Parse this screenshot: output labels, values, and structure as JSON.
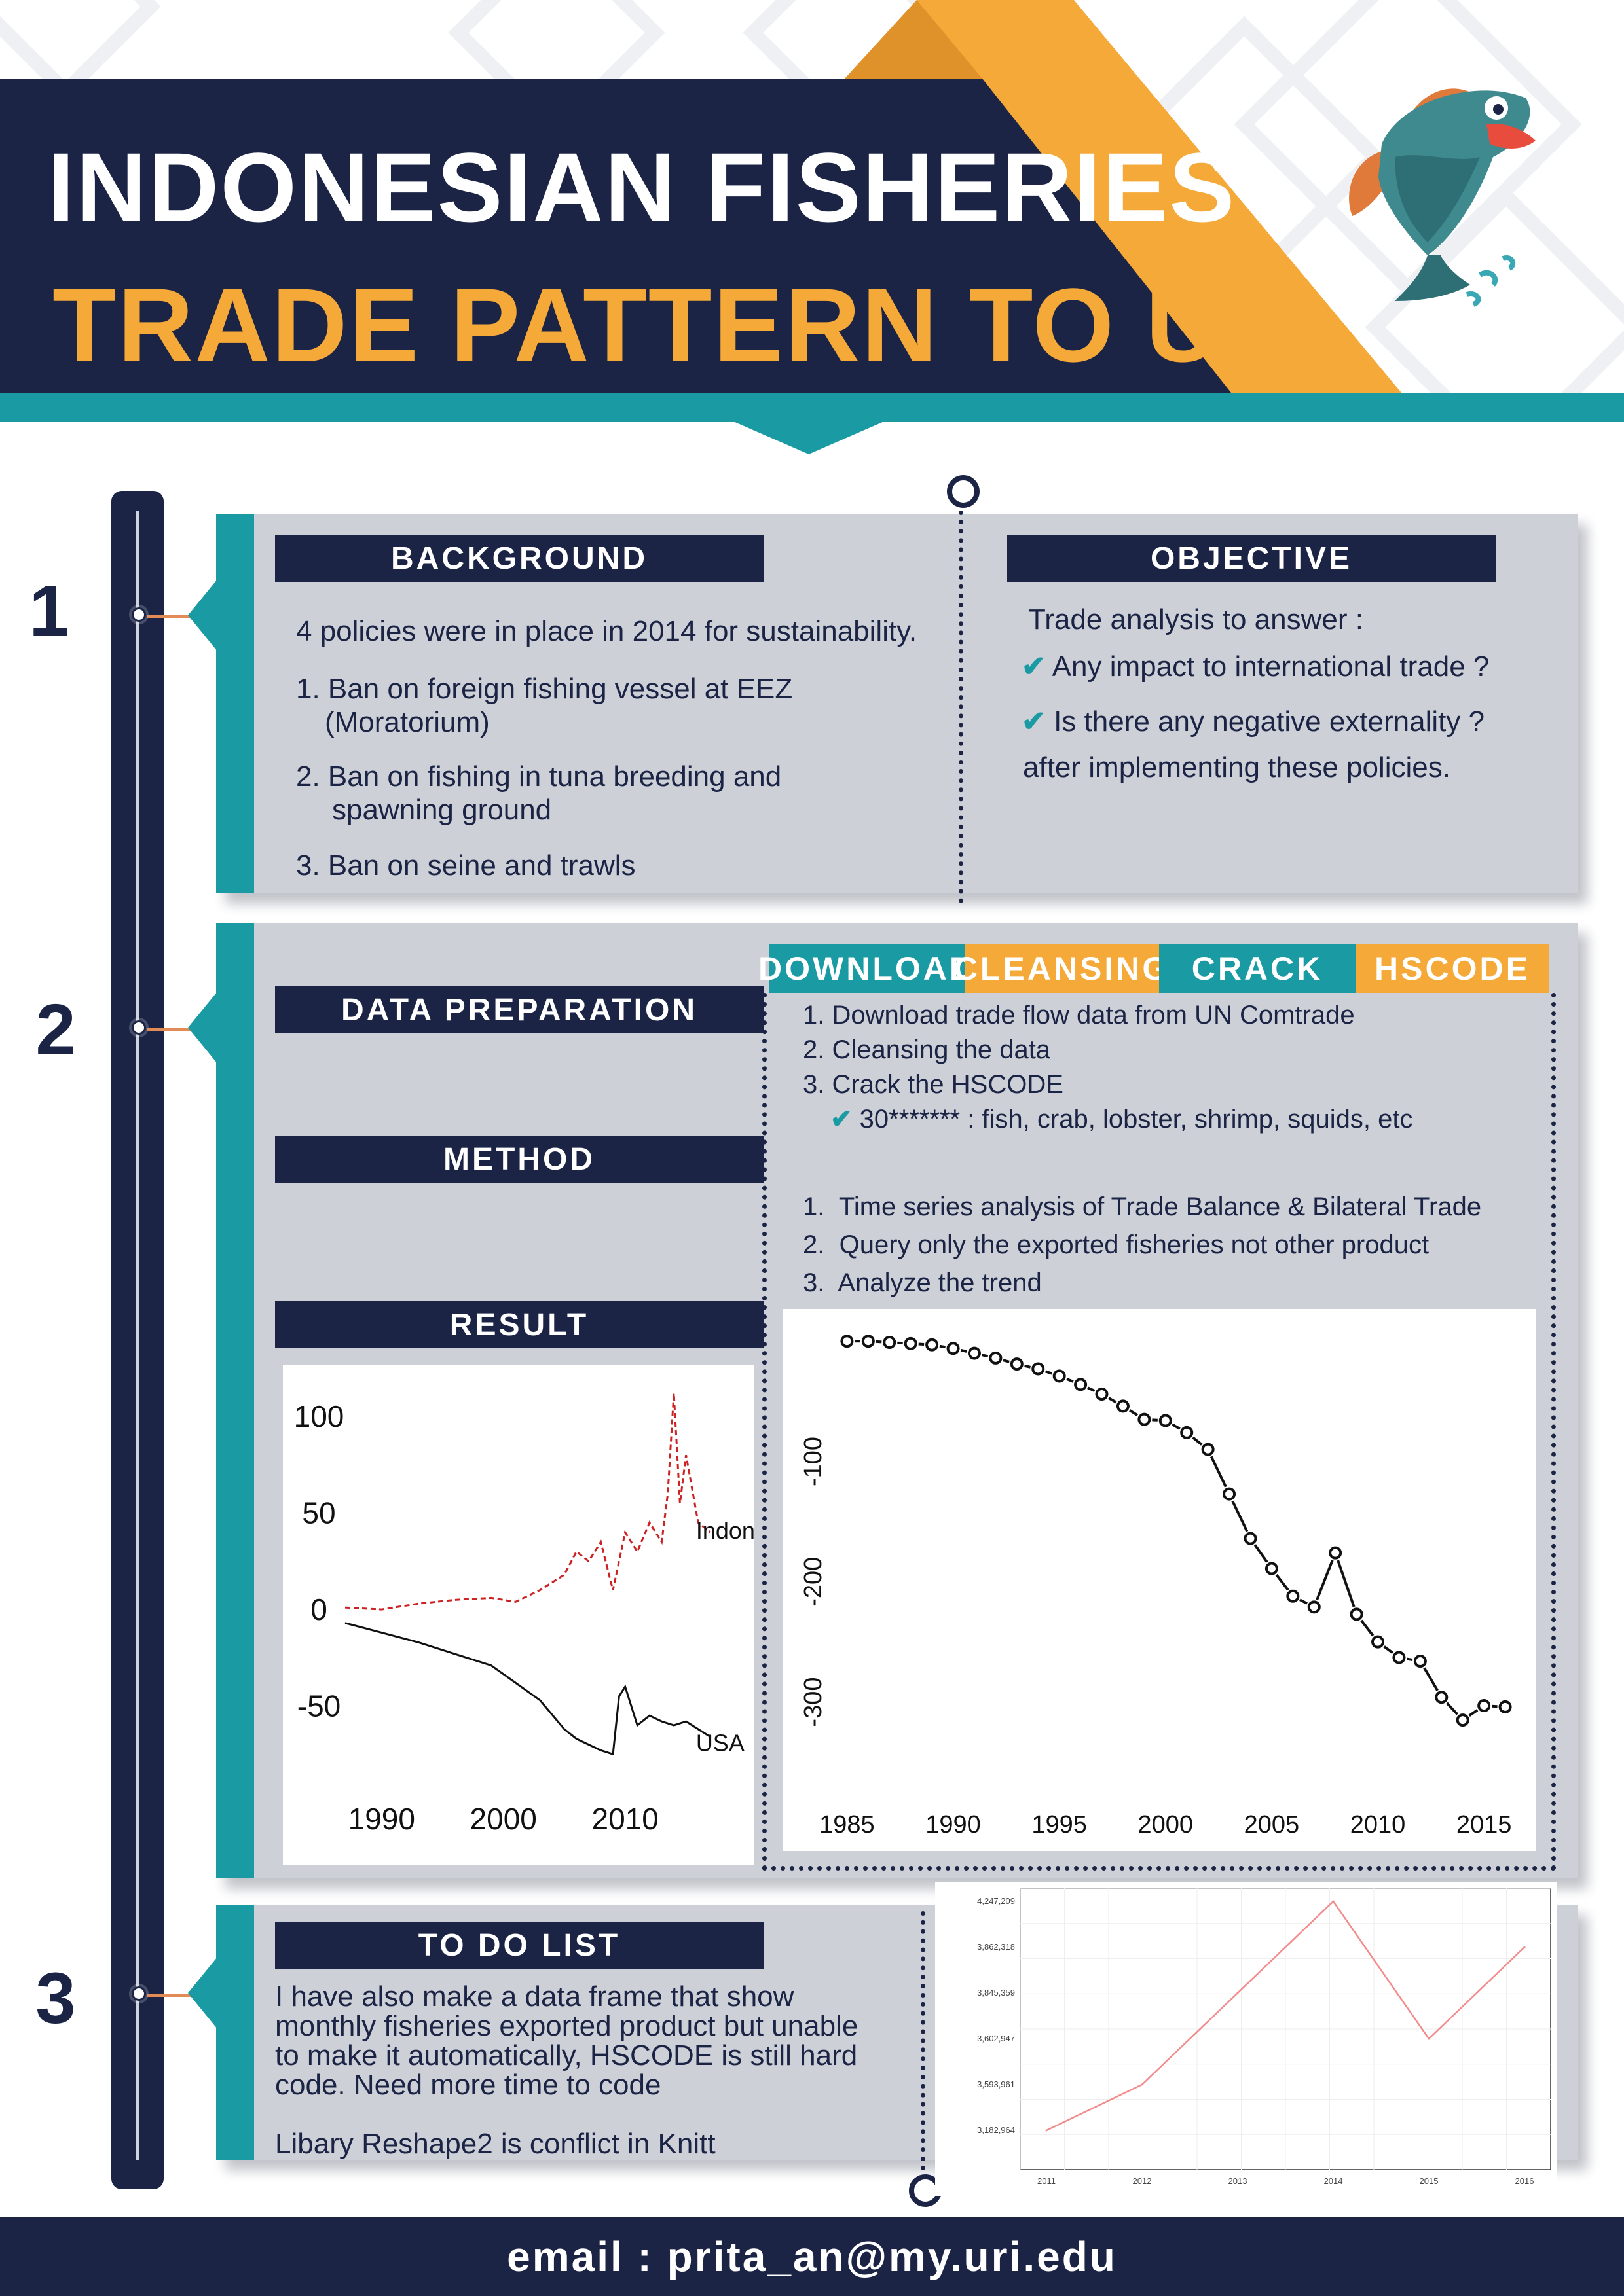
{
  "header": {
    "title_line1": "INDONESIAN FISHERIES",
    "title_line2": "TRADE PATTERN TO U.S.",
    "colors": {
      "navy": "#1b2445",
      "orange": "#f5a938",
      "teal": "#1a9aa3"
    }
  },
  "sections": {
    "s1": "1",
    "s2": "2",
    "s3": "3"
  },
  "background": {
    "heading": "BACKGROUND",
    "intro": "4 policies were in place in 2014 for sustainability.",
    "items": [
      {
        "line1": "1. Ban on foreign fishing vessel at EEZ",
        "line2": "(Moratorium)"
      },
      {
        "line1": "2. Ban on fishing in tuna breeding and",
        "line2": "spawning ground"
      },
      {
        "line1": "3. Ban on seine and trawls",
        "line2": ""
      }
    ]
  },
  "objective": {
    "heading": "OBJECTIVE",
    "intro": "Trade analysis to answer :",
    "q1": "Any impact to international trade ?",
    "q2": "Is there any negative externality ?",
    "outro": "after implementing these policies."
  },
  "steps": [
    "DOWNLOAD",
    "CLEANSING",
    "CRACK",
    "HSCODE"
  ],
  "data_prep": {
    "heading": "DATA PREPARATION",
    "items": [
      "1. Download trade  flow data from UN Comtrade",
      "2. Cleansing the data",
      "3. Crack the HSCODE"
    ],
    "sub": "30******* : fish, crab, lobster, shrimp, squids, etc"
  },
  "method": {
    "heading": "METHOD",
    "items": [
      {
        "num": "1.",
        "text": "Time series analysis of Trade Balance & Bilateral Trade"
      },
      {
        "num": "2.",
        "text": "Query only the exported fisheries  not other product"
      },
      {
        "num": "3.",
        "text": "Analyze the trend"
      }
    ]
  },
  "result": {
    "heading": "RESULT"
  },
  "todo": {
    "heading": "TO DO LIST",
    "para1_l1": "I have also make a data frame that show",
    "para1_l2": "monthly fisheries exported product but unable",
    "para1_l3": "to make it automatically, HSCODE is still hard",
    "para1_l4": "code. Need more time to code",
    "para2": "Libary Reshape2 is conflict in Knitt"
  },
  "footer": {
    "email": "email : prita_an@my.uri.edu"
  },
  "chart_data": [
    {
      "type": "line",
      "title": "",
      "x_ticks": [
        "1990",
        "2000",
        "2010"
      ],
      "y_ticks": [
        "100",
        "50",
        "0",
        "-50"
      ],
      "xlim": [
        1987,
        2019
      ],
      "ylim": [
        -80,
        115
      ],
      "series": [
        {
          "name": "Indonesia",
          "label": "Indonesia",
          "color": "#cc2222",
          "dashed": true,
          "x": [
            1987,
            1990,
            1993,
            1996,
            1999,
            2001,
            2003,
            2005,
            2006,
            2007,
            2008,
            2009,
            2010,
            2011,
            2012,
            2013,
            2013.5,
            2014,
            2014.5,
            2015,
            2016,
            2017
          ],
          "y": [
            1,
            0,
            3,
            5,
            6,
            4,
            10,
            18,
            30,
            25,
            35,
            10,
            40,
            30,
            45,
            35,
            60,
            112,
            55,
            80,
            45,
            40
          ]
        },
        {
          "name": "USA",
          "label": "USA",
          "color": "#111111",
          "dashed": false,
          "x": [
            1987,
            1990,
            1993,
            1996,
            1999,
            2001,
            2003,
            2005,
            2006,
            2007,
            2008,
            2009,
            2009.5,
            2010,
            2011,
            2012,
            2013,
            2014,
            2015,
            2016,
            2017
          ],
          "y": [
            -7,
            -12,
            -17,
            -23,
            -29,
            -38,
            -47,
            -62,
            -67,
            -70,
            -73,
            -75,
            -45,
            -40,
            -60,
            -55,
            -58,
            -60,
            -58,
            -62,
            -66
          ]
        }
      ]
    },
    {
      "type": "scatter",
      "title": "",
      "x_ticks": [
        "1985",
        "1990",
        "1995",
        "2000",
        "2005",
        "2010",
        "2015"
      ],
      "y_ticks": [
        "-100",
        "-200",
        "-300"
      ],
      "xlim": [
        1984,
        2017
      ],
      "ylim": [
        -365,
        5
      ],
      "x": [
        1985,
        1986,
        1987,
        1988,
        1989,
        1990,
        1991,
        1992,
        1993,
        1994,
        1995,
        1996,
        1997,
        1998,
        1999,
        2000,
        2001,
        2002,
        2003,
        2004,
        2005,
        2006,
        2007,
        2008,
        2009,
        2010,
        2011,
        2012,
        2013,
        2014,
        2015,
        2016
      ],
      "y": [
        0,
        0,
        -1,
        -2,
        -3,
        -6,
        -10,
        -14,
        -19,
        -23,
        -29,
        -36,
        -44,
        -54,
        -65,
        -66,
        -76,
        -90,
        -127,
        -164,
        -189,
        -212,
        -221,
        -176,
        -227,
        -250,
        -263,
        -266,
        -296,
        -315,
        -303,
        -304
      ]
    },
    {
      "type": "line",
      "title": "",
      "x": [
        2011,
        2012,
        2013,
        2014,
        2015,
        2016
      ],
      "y": [
        3182964,
        3593961,
        3845359,
        4247209,
        3602947,
        3862318
      ],
      "x_ticks": [
        "2011",
        "2012",
        "2013",
        "2014",
        "2015",
        "2016"
      ],
      "y_ticks": [
        "4,247,209",
        "3,862,318",
        "3,845,359",
        "3,602,947",
        "3,593,961",
        "3,182,964"
      ],
      "color": "#f28c8c"
    }
  ]
}
